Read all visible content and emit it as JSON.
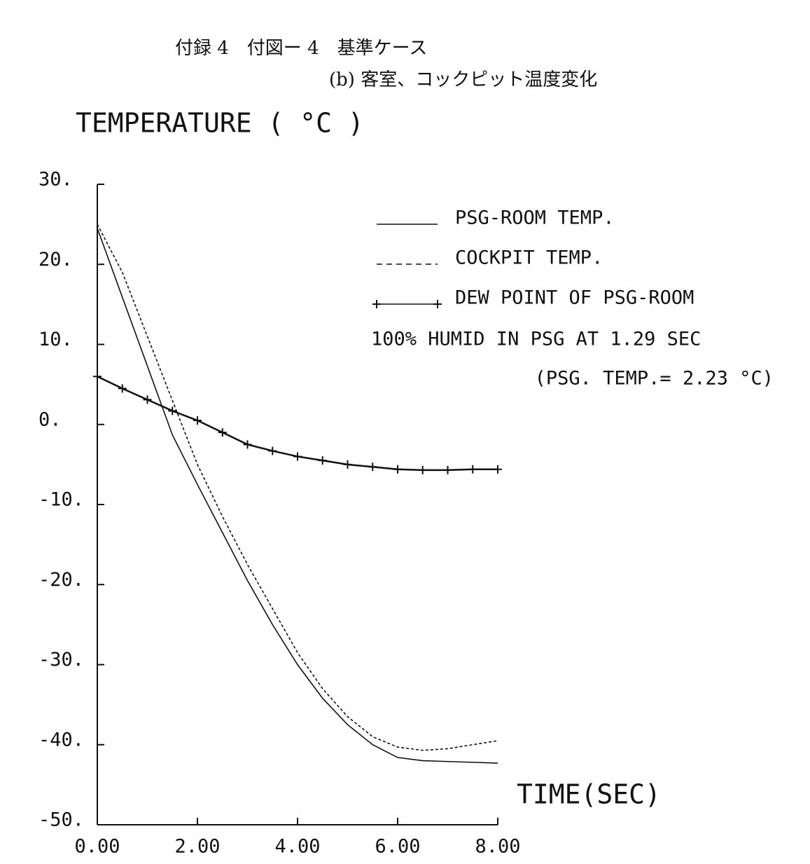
{
  "chart_data": {
    "type": "line",
    "title": "付録 4　付図ー 4　基準ケース",
    "subtitle": "(b) 客室、コックピット温度変化",
    "y_label": "TEMPERATURE ( °C )",
    "x_label": "TIME(SEC)",
    "annotations": [
      "100% HUMID IN PSG AT 1.29 SEC",
      "(PSG. TEMP.= 2.23 °C)"
    ],
    "x": [
      0,
      0.5,
      1,
      1.5,
      2,
      2.5,
      3,
      3.5,
      4,
      4.5,
      5,
      5.5,
      6,
      6.5,
      7,
      7.5,
      8
    ],
    "series": [
      {
        "name": "PSG-ROOM TEMP.",
        "color": "#111111",
        "style": "solid",
        "values": [
          24.5,
          15.9,
          7.3,
          -1.3,
          -7.5,
          -13.5,
          -19.5,
          -25,
          -30,
          -34.2,
          -37.5,
          -40,
          -41.6,
          -42,
          -42.1,
          -42.2,
          -42.3
        ]
      },
      {
        "name": "COCKPIT TEMP.",
        "color": "#111111",
        "style": "dashed",
        "values": [
          25,
          19,
          11,
          3,
          -5,
          -11.5,
          -17.5,
          -23,
          -28.5,
          -33,
          -36.5,
          -39,
          -40.3,
          -40.7,
          -40.5,
          -40,
          -39.5
        ]
      },
      {
        "name": "DEW POINT OF PSG-ROOM",
        "color": "#111111",
        "style": "crossed",
        "values": [
          6,
          4.5,
          3.1,
          1.7,
          0.5,
          -1,
          -2.5,
          -3.3,
          -4,
          -4.5,
          -5,
          -5.3,
          -5.6,
          -5.7,
          -5.7,
          -5.6,
          -5.6
        ]
      }
    ],
    "xlim": [
      0,
      8
    ],
    "xticks": [
      {
        "value": 0,
        "label": "0.00"
      },
      {
        "value": 2,
        "label": "2.00"
      },
      {
        "value": 4,
        "label": "4.00"
      },
      {
        "value": 6,
        "label": "6.00"
      },
      {
        "value": 8,
        "label": "8.00"
      }
    ],
    "ylim": [
      -50,
      30
    ],
    "yticks": [
      {
        "value": -50,
        "label": "-50."
      },
      {
        "value": -40,
        "label": "-40."
      },
      {
        "value": -30,
        "label": "-30."
      },
      {
        "value": -20,
        "label": "-20."
      },
      {
        "value": -10,
        "label": "-10."
      },
      {
        "value": 0,
        "label": "0."
      },
      {
        "value": 10,
        "label": "10."
      },
      {
        "value": 20,
        "label": "20."
      },
      {
        "value": 30,
        "label": "30."
      }
    ],
    "grid": false
  }
}
